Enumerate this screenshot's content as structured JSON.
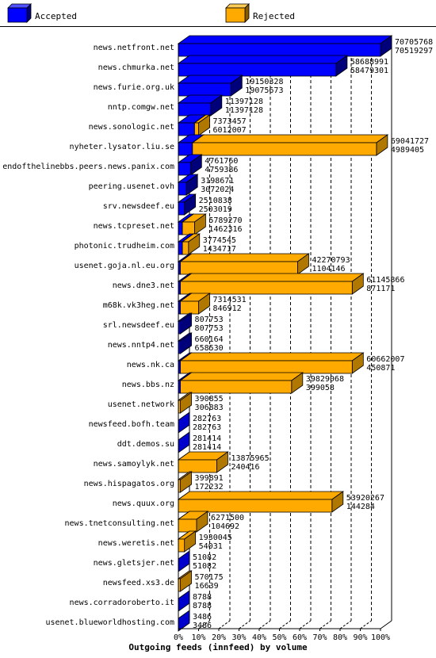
{
  "chart_data": {
    "type": "bar",
    "orientation": "horizontal",
    "title": "Outgoing feeds (innfeed) by volume",
    "legend_position": "top",
    "colors": {
      "accepted": "#0000ff",
      "rejected": "#ffaa00"
    },
    "series": [
      {
        "name": "Accepted",
        "color": "#0000ff"
      },
      {
        "name": "Rejected",
        "color": "#ffaa00"
      }
    ],
    "x_ticks": [
      "0%",
      "10%",
      "20%",
      "30%",
      "40%",
      "50%",
      "60%",
      "70%",
      "80%",
      "90%",
      "100%"
    ],
    "xlim": [
      0,
      100
    ],
    "grid": true,
    "rows": [
      {
        "label": "news.netfront.net",
        "accepted_pct": 100,
        "rejected_pct": 0,
        "total": "70705768",
        "accepted": "70519297"
      },
      {
        "label": "news.chmurka.net",
        "accepted_pct": 78,
        "rejected_pct": 0,
        "total": "58688991",
        "accepted": "58479301"
      },
      {
        "label": "news.furie.org.uk",
        "accepted_pct": 26,
        "rejected_pct": 0,
        "total": "19150328",
        "accepted": "19075673"
      },
      {
        "label": "nntp.comgw.net",
        "accepted_pct": 16,
        "rejected_pct": 0,
        "total": "11397128",
        "accepted": "11397128"
      },
      {
        "label": "news.sonologic.net",
        "accepted_pct": 8,
        "rejected_pct": 2,
        "total": "7373457",
        "accepted": "6012007"
      },
      {
        "label": "nyheter.lysator.liu.se",
        "accepted_pct": 7,
        "rejected_pct": 91,
        "total": "69041727",
        "accepted": "4989405"
      },
      {
        "label": "endofthelinebbs.peers.news.panix.com",
        "accepted_pct": 6,
        "rejected_pct": 0,
        "total": "4761760",
        "accepted": "4759386"
      },
      {
        "label": "peering.usenet.ovh",
        "accepted_pct": 4,
        "rejected_pct": 0,
        "total": "3198671",
        "accepted": "3072024"
      },
      {
        "label": "srv.newsdeef.eu",
        "accepted_pct": 3,
        "rejected_pct": 0,
        "total": "2510838",
        "accepted": "2503019"
      },
      {
        "label": "news.tcpreset.net",
        "accepted_pct": 2,
        "rejected_pct": 6,
        "total": "5789270",
        "accepted": "1462316"
      },
      {
        "label": "photonic.trudheim.com",
        "accepted_pct": 2,
        "rejected_pct": 3,
        "total": "3774545",
        "accepted": "1434717"
      },
      {
        "label": "usenet.goja.nl.eu.org",
        "accepted_pct": 1,
        "rejected_pct": 58,
        "total": "42270793",
        "accepted": "1104146"
      },
      {
        "label": "news.dne3.net",
        "accepted_pct": 1,
        "rejected_pct": 85,
        "total": "61145866",
        "accepted": "871171"
      },
      {
        "label": "m68k.vk3heg.net",
        "accepted_pct": 1,
        "rejected_pct": 9,
        "total": "7314531",
        "accepted": "846912"
      },
      {
        "label": "srl.newsdeef.eu",
        "accepted_pct": 1,
        "rejected_pct": 0,
        "total": "807753",
        "accepted": "807753"
      },
      {
        "label": "news.nntp4.net",
        "accepted_pct": 1,
        "rejected_pct": 0,
        "total": "660164",
        "accepted": "658530"
      },
      {
        "label": "news.nk.ca",
        "accepted_pct": 1,
        "rejected_pct": 85,
        "total": "60662007",
        "accepted": "450871"
      },
      {
        "label": "news.bbs.nz",
        "accepted_pct": 1,
        "rejected_pct": 55,
        "total": "39829068",
        "accepted": "399058"
      },
      {
        "label": "usenet.network",
        "accepted_pct": 0,
        "rejected_pct": 1,
        "total": "390855",
        "accepted": "306883"
      },
      {
        "label": "newsfeed.bofh.team",
        "accepted_pct": 0,
        "rejected_pct": 0,
        "total": "282763",
        "accepted": "282763"
      },
      {
        "label": "ddt.demos.su",
        "accepted_pct": 0,
        "rejected_pct": 0,
        "total": "281414",
        "accepted": "281414"
      },
      {
        "label": "news.samoylyk.net",
        "accepted_pct": 0,
        "rejected_pct": 19,
        "total": "13875965",
        "accepted": "240416"
      },
      {
        "label": "news.hispagatos.org",
        "accepted_pct": 0,
        "rejected_pct": 1,
        "total": "399891",
        "accepted": "172232"
      },
      {
        "label": "news.quux.org",
        "accepted_pct": 0,
        "rejected_pct": 76,
        "total": "53920267",
        "accepted": "144284"
      },
      {
        "label": "news.tnetconsulting.net",
        "accepted_pct": 0,
        "rejected_pct": 9,
        "total": "6271500",
        "accepted": "104692"
      },
      {
        "label": "news.weretis.net",
        "accepted_pct": 0,
        "rejected_pct": 3,
        "total": "1930045",
        "accepted": "54031"
      },
      {
        "label": "news.gletsjer.net",
        "accepted_pct": 0,
        "rejected_pct": 0,
        "total": "51082",
        "accepted": "51082"
      },
      {
        "label": "newsfeed.xs3.de",
        "accepted_pct": 0,
        "rejected_pct": 1,
        "total": "570175",
        "accepted": "16639"
      },
      {
        "label": "news.corradoroberto.it",
        "accepted_pct": 0,
        "rejected_pct": 0,
        "total": "8788",
        "accepted": "8788"
      },
      {
        "label": "usenet.blueworldhosting.com",
        "accepted_pct": 0,
        "rejected_pct": 0,
        "total": "3486",
        "accepted": "3486"
      }
    ]
  }
}
